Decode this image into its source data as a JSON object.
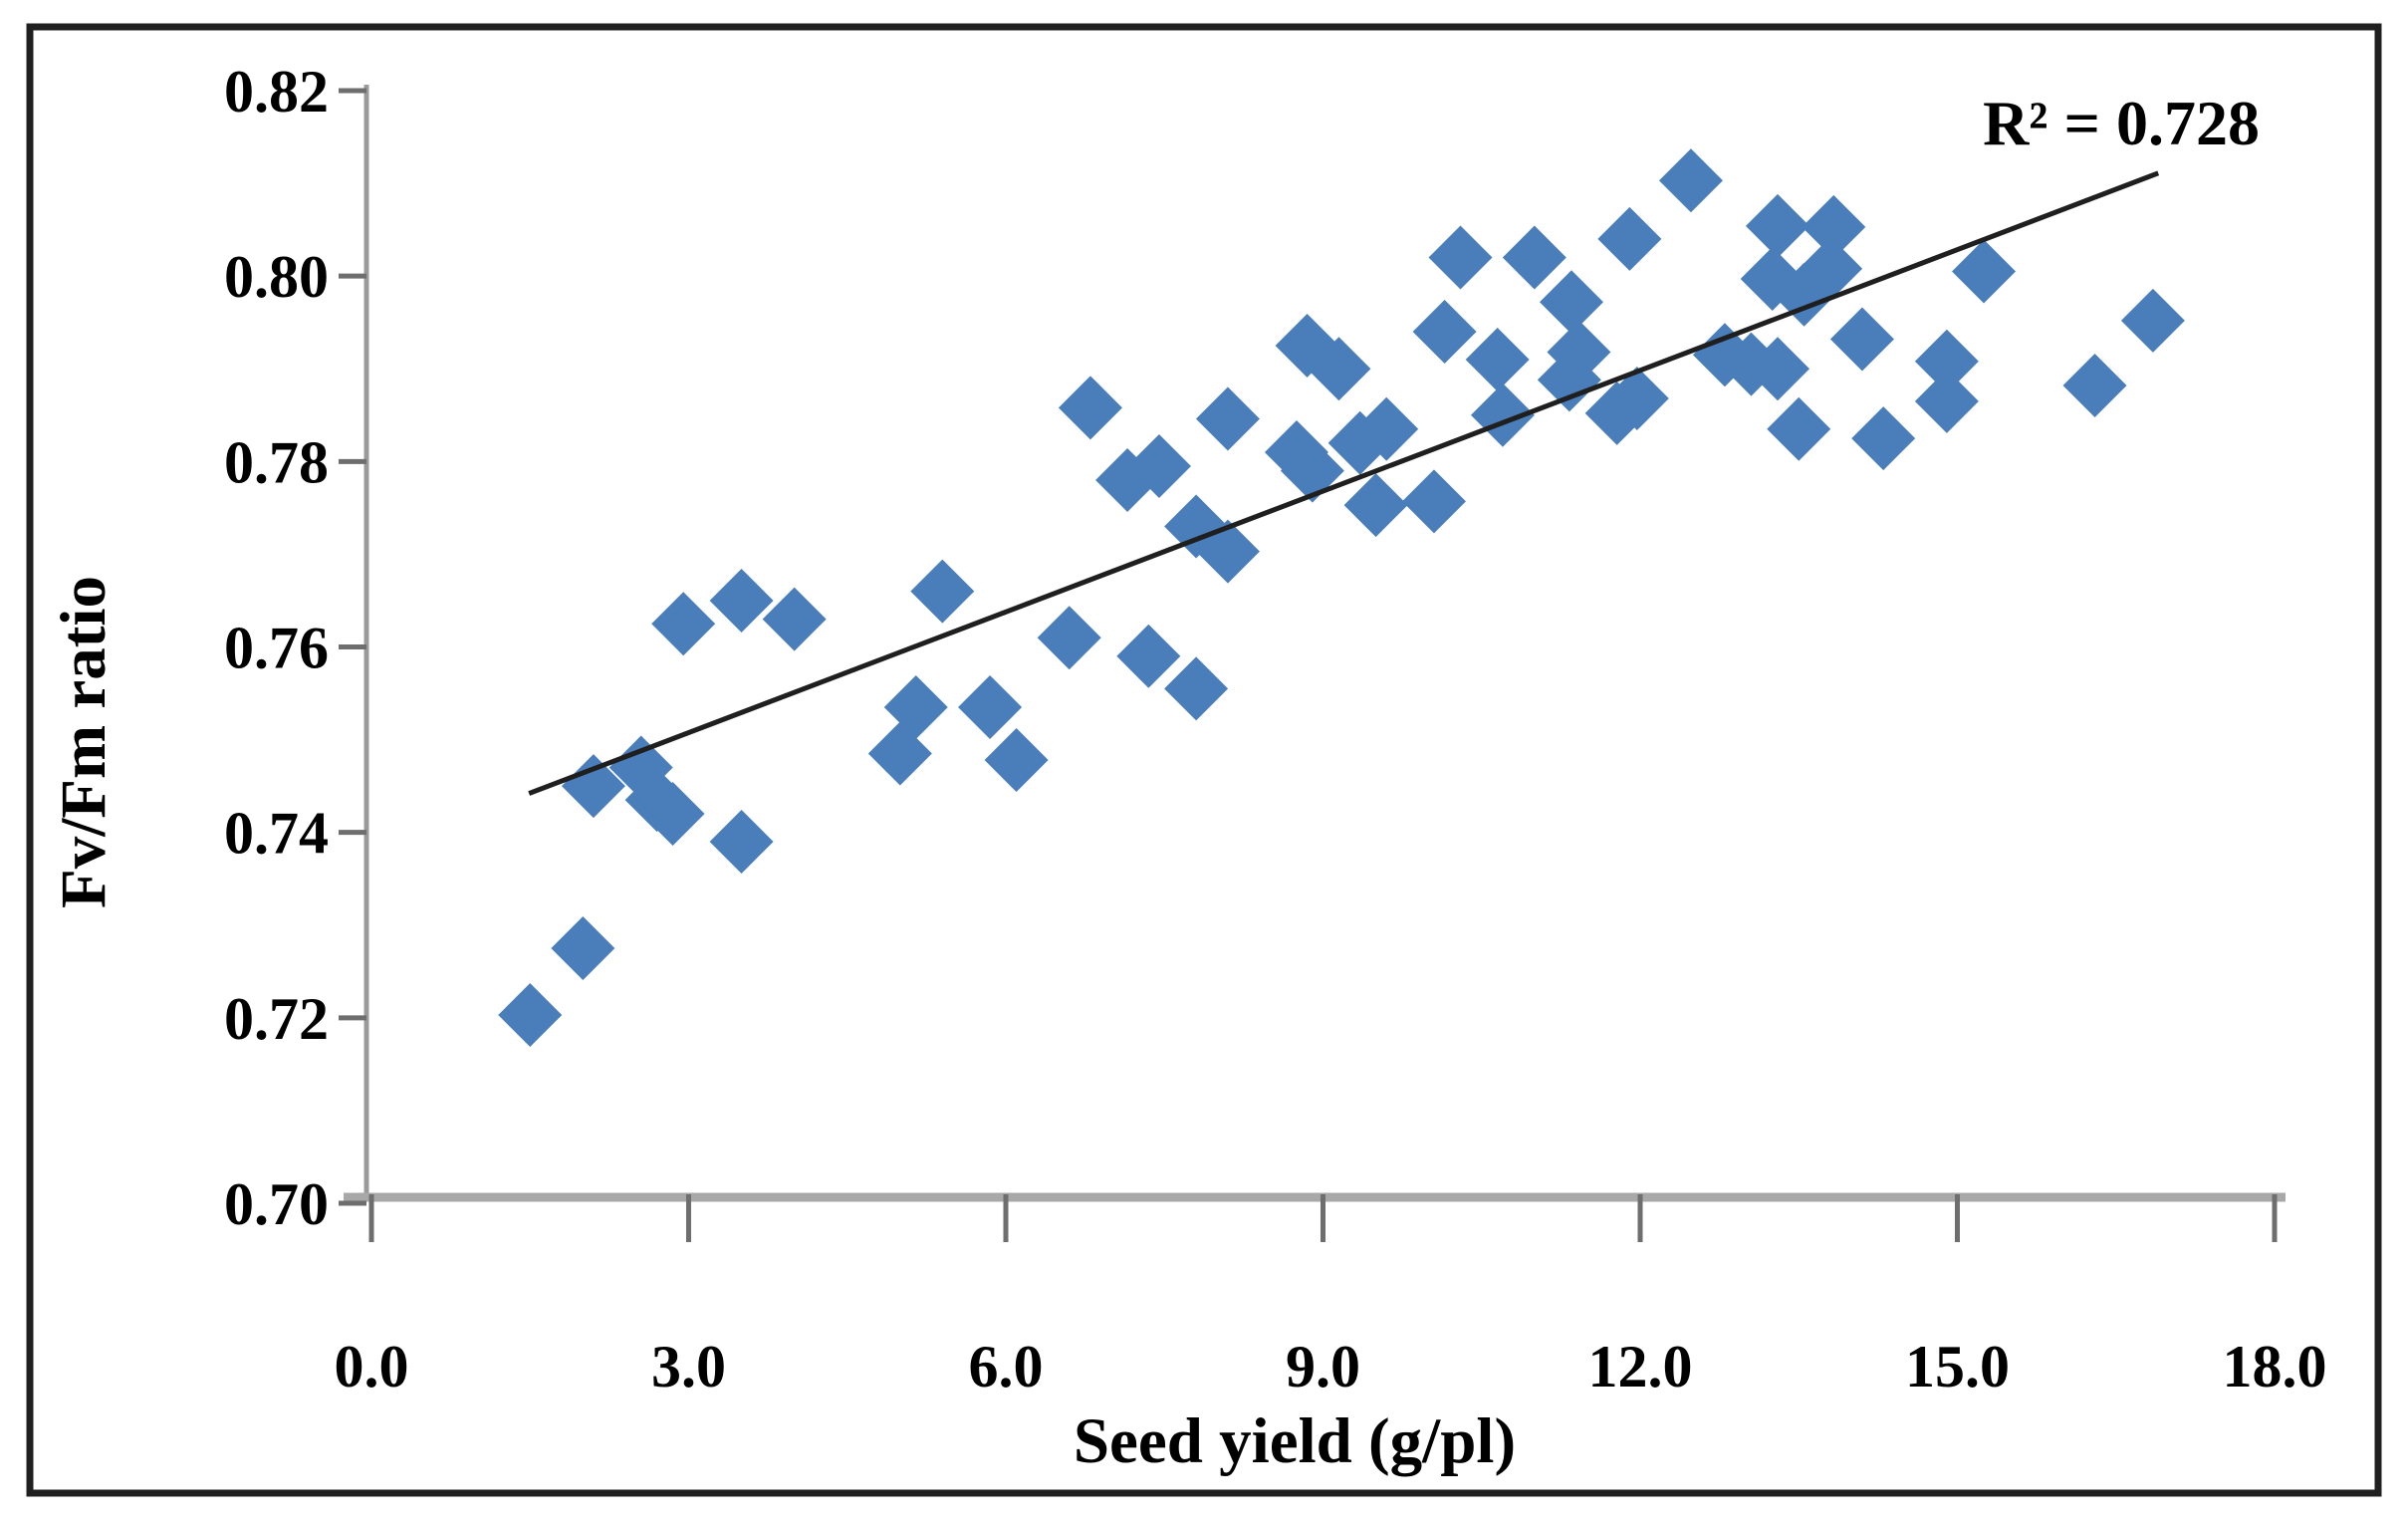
{
  "figure": {
    "background": "#ffffff",
    "border_color": "#202020"
  },
  "chart_data": {
    "type": "scatter",
    "title": "",
    "xlabel": "Seed yield (g/pl)",
    "ylabel": "Fv/Fm ratio",
    "annotation": "R² = 0.728",
    "xlim": [
      0.0,
      18.0
    ],
    "ylim": [
      0.7,
      0.82
    ],
    "x_tick_labels": [
      "0.0",
      "3.0",
      "6.0",
      "9.0",
      "12.0",
      "15.0",
      "18.0"
    ],
    "x_tick_values": [
      0,
      3,
      6,
      9,
      12,
      15,
      18
    ],
    "y_tick_labels": [
      "0.70",
      "0.72",
      "0.74",
      "0.76",
      "0.78",
      "0.80",
      "0.82"
    ],
    "y_tick_values": [
      0.7,
      0.72,
      0.74,
      0.76,
      0.78,
      0.8,
      0.82
    ],
    "grid": false,
    "legend": "none",
    "marker": "diamond",
    "marker_color": "#4a7ebb",
    "trendline": {
      "type": "linear",
      "x1": 1.49,
      "y1": 0.7442,
      "x2": 16.9,
      "y2": 0.8111,
      "color": "#1f1f1f",
      "r_squared": 0.728
    },
    "points": [
      [
        1.5,
        0.7203
      ],
      [
        2.0,
        0.7275
      ],
      [
        2.1,
        0.745
      ],
      [
        2.55,
        0.747
      ],
      [
        2.7,
        0.7435
      ],
      [
        2.85,
        0.742
      ],
      [
        3.5,
        0.739
      ],
      [
        2.95,
        0.7625
      ],
      [
        3.5,
        0.765
      ],
      [
        4.0,
        0.763
      ],
      [
        5.0,
        0.7485
      ],
      [
        5.15,
        0.7535
      ],
      [
        5.4,
        0.766
      ],
      [
        5.85,
        0.7535
      ],
      [
        6.1,
        0.7478
      ],
      [
        6.6,
        0.761
      ],
      [
        6.8,
        0.7858
      ],
      [
        7.15,
        0.778
      ],
      [
        7.45,
        0.7795
      ],
      [
        7.35,
        0.759
      ],
      [
        7.8,
        0.7555
      ],
      [
        7.8,
        0.773
      ],
      [
        8.1,
        0.7703
      ],
      [
        8.1,
        0.7846
      ],
      [
        8.85,
        0.7925
      ],
      [
        9.15,
        0.79
      ],
      [
        8.75,
        0.781
      ],
      [
        8.9,
        0.779
      ],
      [
        9.35,
        0.782
      ],
      [
        9.6,
        0.7835
      ],
      [
        9.5,
        0.7753
      ],
      [
        10.05,
        0.7757
      ],
      [
        10.15,
        0.794
      ],
      [
        10.3,
        0.802
      ],
      [
        10.65,
        0.791
      ],
      [
        10.7,
        0.785
      ],
      [
        11.0,
        0.802
      ],
      [
        11.35,
        0.7972
      ],
      [
        11.42,
        0.7918
      ],
      [
        11.33,
        0.7888
      ],
      [
        11.78,
        0.7852
      ],
      [
        11.97,
        0.7868
      ],
      [
        11.9,
        0.804
      ],
      [
        12.48,
        0.8103
      ],
      [
        12.8,
        0.7915
      ],
      [
        13.05,
        0.7905
      ],
      [
        13.3,
        0.79
      ],
      [
        13.3,
        0.8054
      ],
      [
        13.83,
        0.8053
      ],
      [
        13.25,
        0.7997
      ],
      [
        13.8,
        0.8008
      ],
      [
        13.55,
        0.798
      ],
      [
        14.1,
        0.7932
      ],
      [
        13.5,
        0.7835
      ],
      [
        14.3,
        0.7825
      ],
      [
        14.9,
        0.7908
      ],
      [
        14.9,
        0.7865
      ],
      [
        15.25,
        0.8005
      ],
      [
        16.3,
        0.7882
      ],
      [
        16.85,
        0.7952
      ]
    ]
  }
}
